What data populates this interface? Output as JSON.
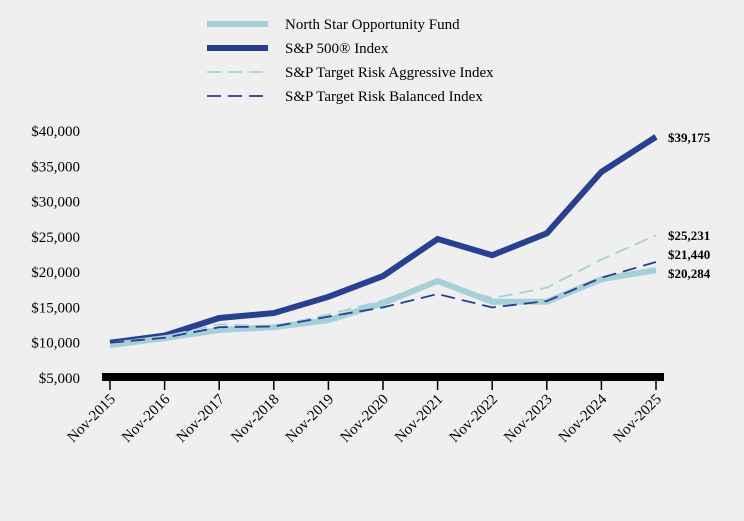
{
  "chart_data": {
    "type": "line",
    "title": "",
    "xlabel": "",
    "ylabel": "",
    "categories": [
      "Nov-2015",
      "Nov-2016",
      "Nov-2017",
      "Nov-2018",
      "Nov-2019",
      "Nov-2020",
      "Nov-2021",
      "Nov-2022",
      "Nov-2023",
      "Nov-2024",
      "Nov-2025"
    ],
    "ylim": [
      5000,
      40000
    ],
    "yticks": [
      5000,
      10000,
      15000,
      20000,
      25000,
      30000,
      35000,
      40000
    ],
    "ytick_labels": [
      "$5,000",
      "$10,000",
      "$15,000",
      "$20,000",
      "$25,000",
      "$30,000",
      "$35,000",
      "$40,000"
    ],
    "grid": false,
    "legend_position": "top-center",
    "series": [
      {
        "name": "North Star Opportunity Fund",
        "color": "#a6d0d7",
        "style": "solid-thick",
        "values": [
          9650,
          10650,
          11800,
          12200,
          13200,
          15600,
          18750,
          15800,
          15800,
          19000,
          20284
        ],
        "end_label": "$20,284"
      },
      {
        "name": "S&P 500® Index",
        "color": "#27408f",
        "style": "solid-thick",
        "values": [
          10000,
          11000,
          13500,
          14200,
          16500,
          19450,
          24700,
          22400,
          25500,
          34200,
          39175
        ],
        "end_label": "$39,175"
      },
      {
        "name": "S&P Target Risk Aggressive Index",
        "color": "#a6d0d7",
        "style": "dashed",
        "values": [
          10000,
          10900,
          12600,
          12300,
          14000,
          16000,
          18600,
          16300,
          17800,
          21800,
          25231
        ],
        "end_label": "$25,231"
      },
      {
        "name": "S&P Target Risk Balanced Index",
        "color": "#27408f",
        "style": "dashed",
        "values": [
          10000,
          10700,
          12200,
          12300,
          13700,
          15000,
          16900,
          15000,
          15900,
          19200,
          21440
        ],
        "end_label": "$21,440"
      }
    ]
  }
}
